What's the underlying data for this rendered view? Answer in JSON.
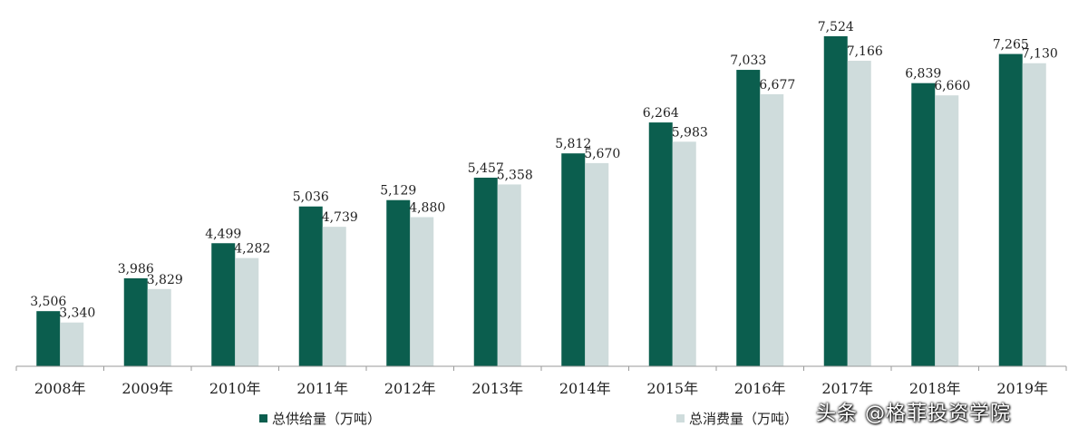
{
  "chart_data": {
    "type": "bar",
    "categories": [
      "2008年",
      "2009年",
      "2010年",
      "2011年",
      "2012年",
      "2013年",
      "2014年",
      "2015年",
      "2016年",
      "2017年",
      "2018年",
      "2019年"
    ],
    "series": [
      {
        "name": "总供给量（万吨）",
        "values": [
          3506,
          3986,
          4499,
          5036,
          5129,
          5457,
          5812,
          6264,
          7033,
          7524,
          6839,
          7265
        ],
        "labels": [
          "3,506",
          "3,986",
          "4,499",
          "5,036",
          "5,129",
          "5,457",
          "5,812",
          "6,264",
          "7,033",
          "7,524",
          "6,839",
          "7,265"
        ],
        "color": "#0b5e4e"
      },
      {
        "name": "总消费量（万吨）",
        "values": [
          3340,
          3829,
          4282,
          4739,
          4880,
          5358,
          5670,
          5983,
          6677,
          7166,
          6660,
          7130
        ],
        "labels": [
          "3,340",
          "3,829",
          "4,282",
          "4,739",
          "4,880",
          "5,358",
          "5,670",
          "5,983",
          "6,677",
          "7,166",
          "6,660",
          "7,130"
        ],
        "color": "#cfdcdc"
      }
    ],
    "title": "",
    "xlabel": "",
    "ylabel": "",
    "ylim": [
      2700,
      7650
    ],
    "grid": false,
    "legend_position": "bottom"
  },
  "legend": {
    "supply_label": "总供给量（万吨）",
    "consume_label": "总消费量（万吨）"
  },
  "watermark": "头条 @格菲投资学院",
  "colors": {
    "axis": "#9a9a9a",
    "text": "#222222"
  }
}
